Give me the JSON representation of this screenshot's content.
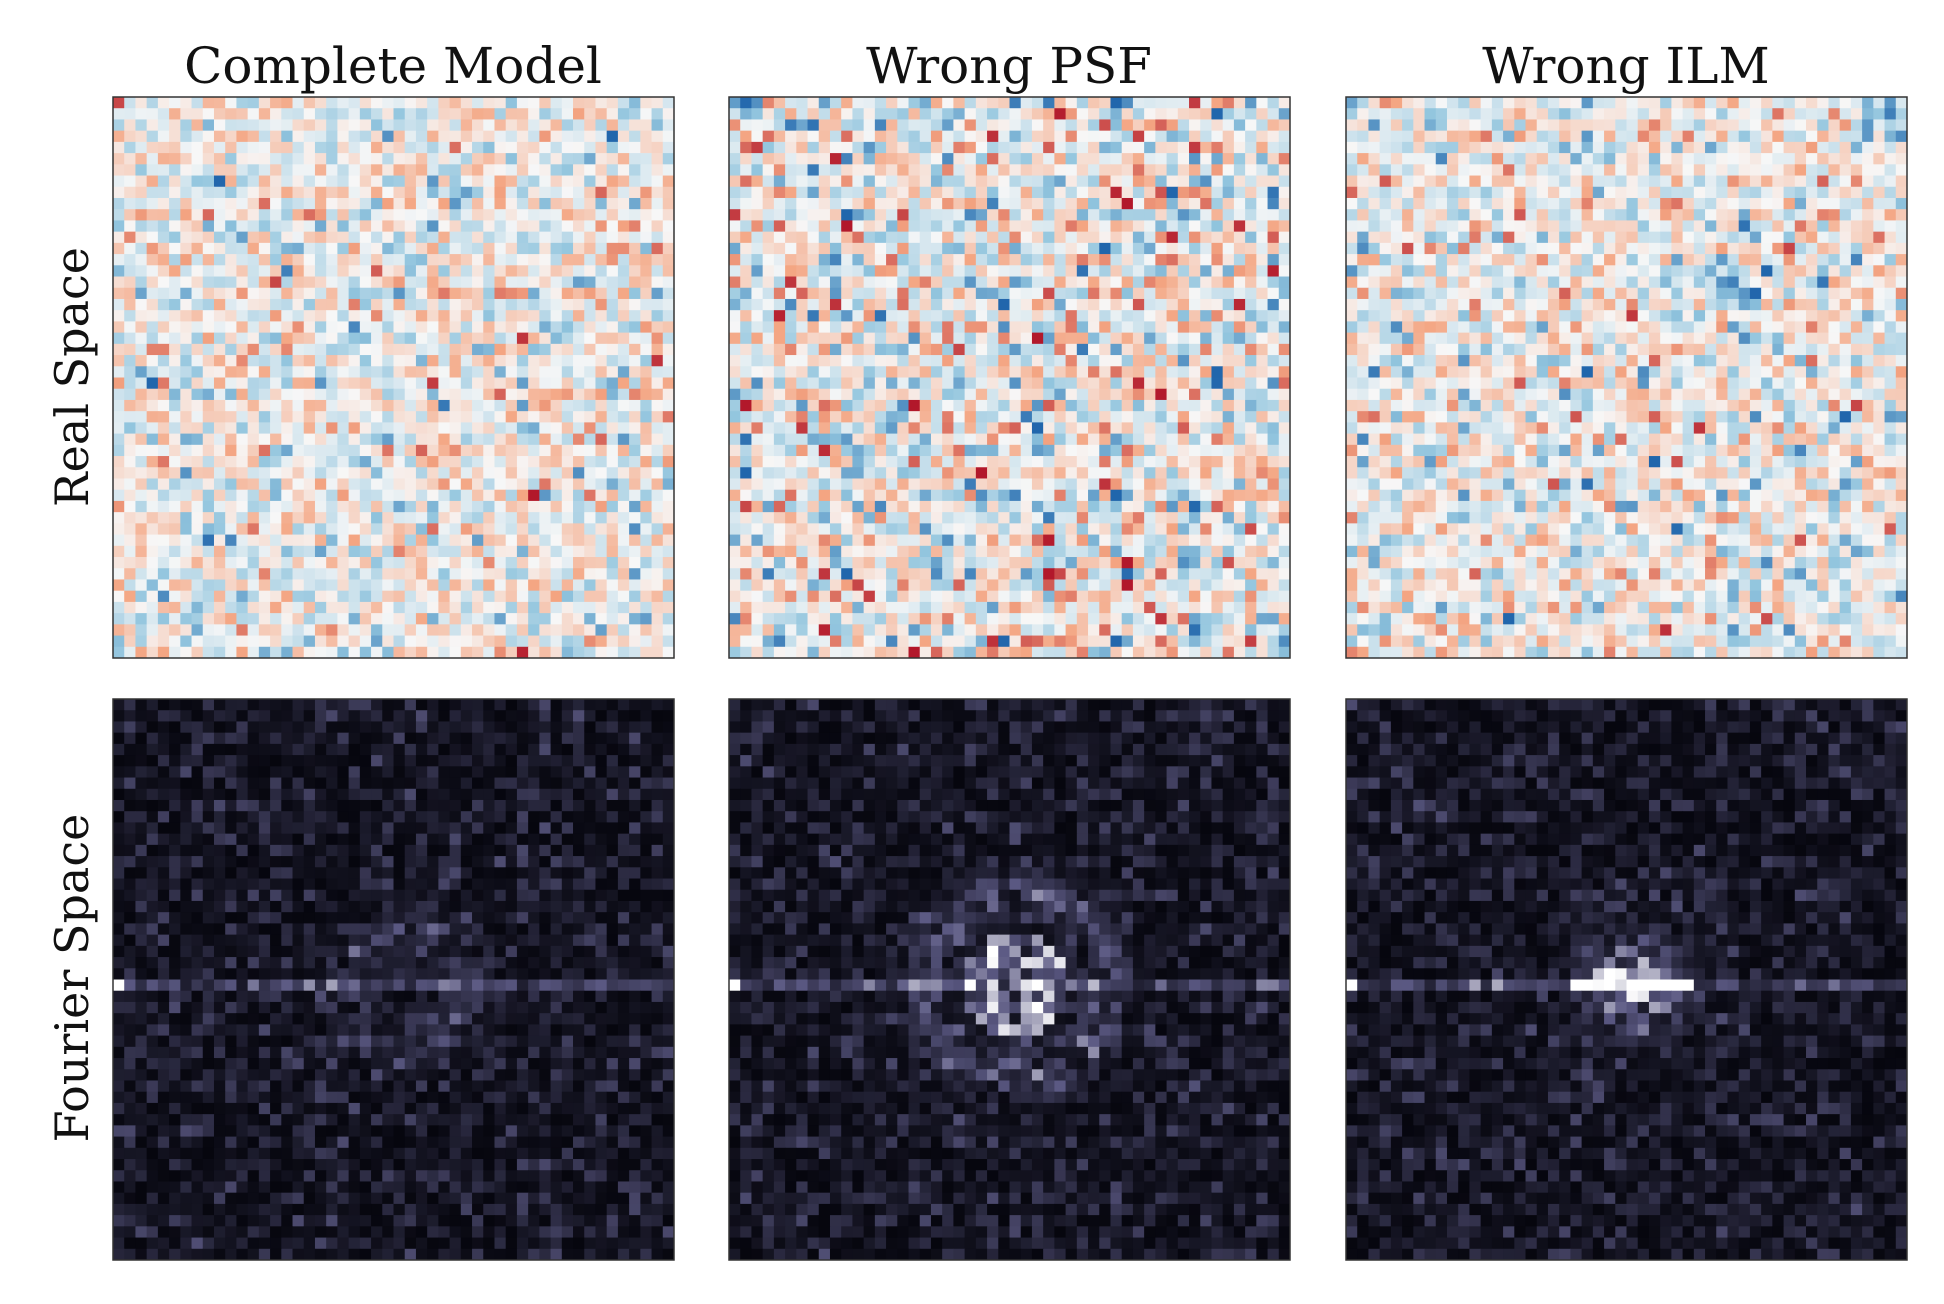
{
  "figure": {
    "columns": [
      "Complete Model",
      "Wrong PSF",
      "Wrong ILM"
    ],
    "rows": [
      "Real Space",
      "Fourier Space"
    ]
  }
}
